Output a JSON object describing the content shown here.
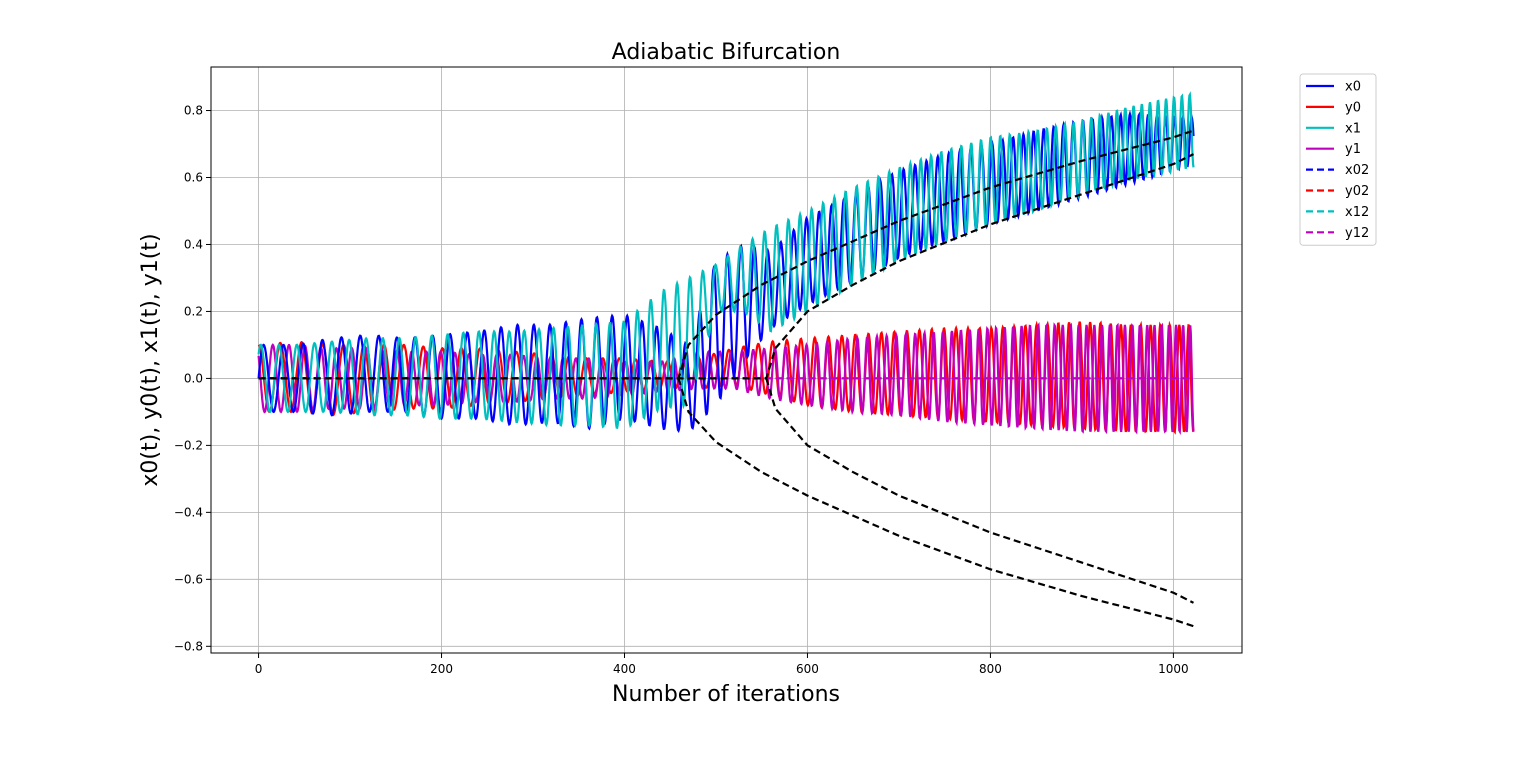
{
  "chart_data": {
    "type": "line",
    "title": "Adiabatic Bifurcation",
    "xlabel": "Number of iterations",
    "ylabel": "x0(t), y0(t), x1(t), y1(t)",
    "xlim": [
      -52,
      1075
    ],
    "ylim": [
      -0.82,
      0.93
    ],
    "xticks": [
      0,
      200,
      400,
      600,
      800,
      1000
    ],
    "yticks": [
      -0.8,
      -0.6,
      -0.4,
      -0.2,
      0.0,
      0.2,
      0.4,
      0.6,
      0.8
    ],
    "xtick_labels": [
      "0",
      "200",
      "400",
      "600",
      "800",
      "1000"
    ],
    "ytick_labels": [
      "−0.8",
      "−0.6",
      "−0.4",
      "−0.2",
      "0.0",
      "0.2",
      "0.4",
      "0.6",
      "0.8"
    ],
    "grid": true,
    "legend_position": "outside-top-right",
    "series": [
      {
        "name": "x0",
        "color": "#0000ff",
        "dash": "solid",
        "x": [
          0,
          40,
          80,
          120,
          160,
          200,
          240,
          280,
          320,
          360,
          400,
          440,
          470,
          500,
          530,
          560,
          600,
          650,
          700,
          750,
          800,
          850,
          900,
          950,
          1000,
          1022
        ],
        "envelope_low": [
          -0.1,
          -0.1,
          -0.11,
          -0.1,
          -0.1,
          -0.12,
          -0.12,
          -0.14,
          -0.13,
          -0.15,
          -0.12,
          -0.15,
          -0.16,
          -0.08,
          0.05,
          0.15,
          0.22,
          0.29,
          0.36,
          0.41,
          0.46,
          0.5,
          0.54,
          0.58,
          0.62,
          0.64
        ],
        "envelope_high": [
          0.1,
          0.1,
          0.12,
          0.13,
          0.12,
          0.13,
          0.14,
          0.16,
          0.16,
          0.18,
          0.19,
          0.15,
          0.1,
          0.35,
          0.4,
          0.38,
          0.48,
          0.55,
          0.62,
          0.67,
          0.7,
          0.74,
          0.77,
          0.79,
          0.78,
          0.78
        ]
      },
      {
        "name": "y0",
        "color": "#ff0000",
        "dash": "solid",
        "x": [
          0,
          40,
          80,
          120,
          160,
          200,
          240,
          280,
          320,
          360,
          400,
          440,
          480,
          520,
          560,
          600,
          650,
          700,
          750,
          800,
          850,
          900,
          950,
          1000,
          1022
        ],
        "envelope_low": [
          -0.1,
          -0.1,
          -0.11,
          -0.1,
          -0.09,
          -0.09,
          -0.08,
          -0.07,
          -0.06,
          -0.05,
          -0.04,
          -0.03,
          -0.03,
          -0.02,
          -0.05,
          -0.08,
          -0.1,
          -0.11,
          -0.12,
          -0.13,
          -0.14,
          -0.15,
          -0.16,
          -0.16,
          -0.16
        ],
        "envelope_high": [
          0.1,
          0.11,
          0.1,
          0.1,
          0.1,
          0.09,
          0.09,
          0.08,
          0.07,
          0.06,
          0.06,
          0.05,
          0.06,
          0.09,
          0.11,
          0.12,
          0.13,
          0.14,
          0.15,
          0.15,
          0.16,
          0.17,
          0.16,
          0.16,
          0.16
        ]
      },
      {
        "name": "x1",
        "color": "#00bfbf",
        "dash": "solid",
        "x": [
          0,
          40,
          80,
          120,
          160,
          200,
          240,
          280,
          320,
          360,
          400,
          440,
          470,
          500,
          530,
          560,
          600,
          650,
          700,
          750,
          800,
          850,
          900,
          950,
          1000,
          1022
        ],
        "envelope_low": [
          -0.1,
          -0.1,
          -0.1,
          -0.11,
          -0.11,
          -0.12,
          -0.12,
          -0.13,
          -0.14,
          -0.14,
          -0.15,
          -0.09,
          -0.08,
          0.2,
          0.2,
          0.14,
          0.2,
          0.28,
          0.35,
          0.41,
          0.46,
          0.5,
          0.55,
          0.59,
          0.62,
          0.63
        ],
        "envelope_high": [
          0.1,
          0.1,
          0.11,
          0.12,
          0.12,
          0.13,
          0.14,
          0.14,
          0.15,
          0.16,
          0.17,
          0.26,
          0.3,
          0.34,
          0.4,
          0.45,
          0.5,
          0.57,
          0.63,
          0.68,
          0.72,
          0.74,
          0.77,
          0.81,
          0.84,
          0.85
        ]
      },
      {
        "name": "y1",
        "color": "#bf00bf",
        "dash": "solid",
        "x": [
          0,
          40,
          80,
          120,
          160,
          200,
          240,
          280,
          320,
          360,
          400,
          440,
          480,
          520,
          560,
          600,
          650,
          700,
          750,
          800,
          850,
          900,
          950,
          1000,
          1022
        ],
        "envelope_low": [
          -0.1,
          -0.1,
          -0.09,
          -0.09,
          -0.08,
          -0.08,
          -0.07,
          -0.07,
          -0.06,
          -0.06,
          -0.05,
          -0.04,
          -0.03,
          -0.03,
          -0.06,
          -0.08,
          -0.1,
          -0.11,
          -0.13,
          -0.14,
          -0.15,
          -0.16,
          -0.16,
          -0.16,
          -0.16
        ],
        "envelope_high": [
          0.1,
          0.1,
          0.09,
          0.09,
          0.08,
          0.08,
          0.07,
          0.07,
          0.06,
          0.06,
          0.05,
          0.05,
          0.08,
          0.08,
          0.09,
          0.1,
          0.12,
          0.13,
          0.14,
          0.15,
          0.16,
          0.16,
          0.16,
          0.16,
          0.16
        ]
      },
      {
        "name": "x02",
        "color": "#0000ff",
        "dash": "dashed",
        "x": [
          0,
          1022
        ],
        "y": [
          0,
          0
        ]
      },
      {
        "name": "y02",
        "color": "#ff0000",
        "dash": "dashed",
        "x": [
          0,
          1022
        ],
        "y": [
          0,
          0
        ]
      },
      {
        "name": "x12",
        "color": "#00bfbf",
        "dash": "dashed",
        "x": [
          0,
          1022
        ],
        "y": [
          0,
          0
        ]
      },
      {
        "name": "y12",
        "color": "#bf00bf",
        "dash": "dashed",
        "x": [
          0,
          1022
        ],
        "y": [
          0,
          0
        ]
      }
    ],
    "reference_lines": [
      {
        "color": "#000000",
        "dash": "dashed",
        "x": [
          0,
          459,
          470,
          500,
          550,
          600,
          700,
          800,
          900,
          1000,
          1022
        ],
        "y": [
          0.0,
          0.0,
          0.1,
          0.19,
          0.28,
          0.35,
          0.47,
          0.57,
          0.65,
          0.72,
          0.74
        ]
      },
      {
        "color": "#000000",
        "dash": "dashed",
        "x": [
          459,
          470,
          500,
          550,
          600,
          700,
          800,
          900,
          1000,
          1022
        ],
        "y": [
          0.0,
          -0.1,
          -0.19,
          -0.28,
          -0.35,
          -0.47,
          -0.57,
          -0.65,
          -0.72,
          -0.74
        ]
      },
      {
        "color": "#000000",
        "dash": "dashed",
        "x": [
          0,
          555,
          565,
          600,
          650,
          700,
          800,
          900,
          1000,
          1022
        ],
        "y": [
          0.0,
          0.0,
          0.09,
          0.2,
          0.28,
          0.35,
          0.46,
          0.55,
          0.64,
          0.67
        ]
      },
      {
        "color": "#000000",
        "dash": "dashed",
        "x": [
          555,
          565,
          600,
          650,
          700,
          800,
          900,
          1000,
          1022
        ],
        "y": [
          0.0,
          -0.09,
          -0.2,
          -0.28,
          -0.35,
          -0.46,
          -0.55,
          -0.64,
          -0.67
        ]
      }
    ]
  }
}
